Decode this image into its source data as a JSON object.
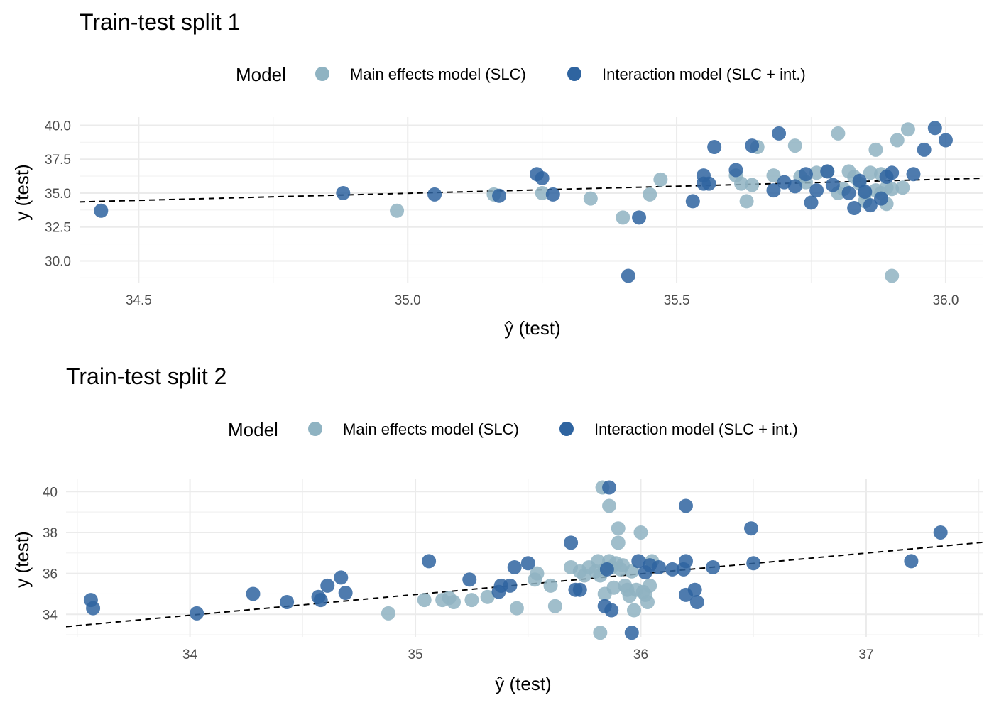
{
  "colors": {
    "main": "#8fb3c2",
    "interaction": "#2f64a0"
  },
  "legend": {
    "title": "Model",
    "main_label": "Main effects model (SLC)",
    "interaction_label": "Interaction model (SLC + int.)"
  },
  "chart_data": [
    {
      "type": "scatter",
      "title": "Train-test split 1",
      "xlabel": "ŷ (test)",
      "ylabel": "y (test)",
      "xlim": [
        34.39,
        36.07
      ],
      "ylim": [
        28.4,
        40.6
      ],
      "xticks": [
        34.5,
        35.0,
        35.5,
        36.0
      ],
      "xtick_labels": [
        "34.5",
        "35.0",
        "35.5",
        "36.0"
      ],
      "yticks": [
        30.0,
        32.5,
        35.0,
        37.5,
        40.0
      ],
      "ytick_labels": [
        "30.0",
        "32.5",
        "35.0",
        "37.5",
        "40.0"
      ],
      "grid": true,
      "legend_position": "top",
      "reference_line": {
        "x": [
          34.39,
          36.07
        ],
        "y": [
          34.35,
          36.1
        ]
      },
      "series": [
        {
          "name": "Main effects model (SLC)",
          "color_key": "main",
          "points": [
            [
              34.98,
              33.7
            ],
            [
              35.16,
              34.9
            ],
            [
              35.25,
              35.0
            ],
            [
              35.34,
              34.6
            ],
            [
              35.4,
              33.2
            ],
            [
              35.45,
              34.9
            ],
            [
              35.47,
              36.0
            ],
            [
              35.61,
              36.3
            ],
            [
              35.62,
              35.7
            ],
            [
              35.63,
              34.4
            ],
            [
              35.64,
              35.6
            ],
            [
              35.65,
              38.4
            ],
            [
              35.68,
              36.3
            ],
            [
              35.72,
              38.5
            ],
            [
              35.73,
              36.2
            ],
            [
              35.74,
              35.8
            ],
            [
              35.76,
              36.5
            ],
            [
              35.78,
              36.6
            ],
            [
              35.8,
              39.4
            ],
            [
              35.8,
              35.0
            ],
            [
              35.81,
              35.3
            ],
            [
              35.82,
              36.6
            ],
            [
              35.83,
              36.2
            ],
            [
              35.84,
              35.7
            ],
            [
              35.85,
              34.4
            ],
            [
              35.85,
              35.0
            ],
            [
              35.86,
              36.5
            ],
            [
              35.87,
              38.2
            ],
            [
              35.87,
              35.2
            ],
            [
              35.88,
              36.4
            ],
            [
              35.88,
              35.0
            ],
            [
              35.89,
              34.2
            ],
            [
              35.89,
              35.4
            ],
            [
              35.9,
              28.9
            ],
            [
              35.9,
              35.3
            ],
            [
              35.91,
              38.9
            ],
            [
              35.92,
              35.4
            ],
            [
              35.93,
              39.7
            ]
          ]
        },
        {
          "name": "Interaction model (SLC + int.)",
          "color_key": "interaction",
          "points": [
            [
              34.43,
              33.7
            ],
            [
              34.88,
              35.0
            ],
            [
              35.05,
              34.9
            ],
            [
              35.17,
              34.8
            ],
            [
              35.24,
              36.4
            ],
            [
              35.25,
              36.1
            ],
            [
              35.27,
              34.9
            ],
            [
              35.41,
              28.9
            ],
            [
              35.43,
              33.2
            ],
            [
              35.53,
              34.4
            ],
            [
              35.55,
              35.7
            ],
            [
              35.55,
              36.3
            ],
            [
              35.56,
              35.7
            ],
            [
              35.57,
              38.4
            ],
            [
              35.61,
              36.7
            ],
            [
              35.64,
              38.5
            ],
            [
              35.68,
              35.2
            ],
            [
              35.69,
              39.4
            ],
            [
              35.7,
              35.8
            ],
            [
              35.72,
              35.5
            ],
            [
              35.74,
              36.4
            ],
            [
              35.75,
              34.3
            ],
            [
              35.76,
              35.2
            ],
            [
              35.78,
              36.6
            ],
            [
              35.79,
              35.6
            ],
            [
              35.82,
              35.0
            ],
            [
              35.83,
              33.9
            ],
            [
              35.84,
              35.9
            ],
            [
              35.85,
              35.1
            ],
            [
              35.86,
              34.1
            ],
            [
              35.88,
              34.6
            ],
            [
              35.89,
              36.2
            ],
            [
              35.9,
              36.5
            ],
            [
              35.94,
              36.4
            ],
            [
              35.96,
              38.2
            ],
            [
              35.98,
              39.8
            ],
            [
              36.0,
              38.9
            ]
          ]
        }
      ]
    },
    {
      "type": "scatter",
      "title": "Train-test split 2",
      "xlabel": "ŷ (test)",
      "ylabel": "y (test)",
      "xlim": [
        33.45,
        37.52
      ],
      "ylim": [
        32.9,
        40.6
      ],
      "xticks": [
        34,
        35,
        36,
        37
      ],
      "xtick_labels": [
        "34",
        "35",
        "36",
        "37"
      ],
      "yticks": [
        34,
        36,
        38,
        40
      ],
      "ytick_labels": [
        "34",
        "36",
        "38",
        "40"
      ],
      "grid": true,
      "legend_position": "top",
      "reference_line": {
        "x": [
          33.45,
          37.52
        ],
        "y": [
          33.4,
          37.52
        ]
      },
      "series": [
        {
          "name": "Main effects model (SLC)",
          "color_key": "main",
          "points": [
            [
              34.88,
              34.05
            ],
            [
              35.04,
              34.7
            ],
            [
              35.12,
              34.7
            ],
            [
              35.15,
              34.8
            ],
            [
              35.17,
              34.6
            ],
            [
              35.25,
              34.7
            ],
            [
              35.32,
              34.85
            ],
            [
              35.45,
              34.3
            ],
            [
              35.53,
              35.7
            ],
            [
              35.54,
              36.0
            ],
            [
              35.6,
              35.4
            ],
            [
              35.62,
              34.4
            ],
            [
              35.69,
              36.3
            ],
            [
              35.73,
              36.1
            ],
            [
              35.75,
              35.9
            ],
            [
              35.77,
              36.3
            ],
            [
              35.8,
              36.1
            ],
            [
              35.81,
              36.6
            ],
            [
              35.82,
              35.9
            ],
            [
              35.83,
              40.2
            ],
            [
              35.84,
              35.0
            ],
            [
              35.84,
              36.2
            ],
            [
              35.86,
              36.6
            ],
            [
              35.86,
              39.3
            ],
            [
              35.87,
              36.3
            ],
            [
              35.88,
              35.3
            ],
            [
              35.89,
              36.5
            ],
            [
              35.9,
              38.2
            ],
            [
              35.9,
              37.5
            ],
            [
              35.91,
              36.2
            ],
            [
              35.92,
              36.4
            ],
            [
              35.93,
              35.4
            ],
            [
              35.94,
              35.2
            ],
            [
              35.95,
              34.9
            ],
            [
              35.96,
              36.1
            ],
            [
              35.97,
              34.2
            ],
            [
              35.98,
              35.2
            ],
            [
              36.0,
              38.0
            ],
            [
              36.01,
              35.1
            ],
            [
              36.02,
              34.95
            ],
            [
              36.03,
              34.6
            ],
            [
              36.04,
              35.4
            ],
            [
              36.05,
              36.6
            ],
            [
              35.82,
              33.1
            ]
          ]
        },
        {
          "name": "Interaction model (SLC + int.)",
          "color_key": "interaction",
          "points": [
            [
              33.56,
              34.7
            ],
            [
              33.57,
              34.3
            ],
            [
              34.03,
              34.05
            ],
            [
              34.28,
              35.0
            ],
            [
              34.43,
              34.6
            ],
            [
              34.57,
              34.85
            ],
            [
              34.58,
              34.7
            ],
            [
              34.61,
              35.4
            ],
            [
              34.67,
              35.8
            ],
            [
              34.69,
              35.05
            ],
            [
              35.06,
              36.6
            ],
            [
              35.24,
              35.7
            ],
            [
              35.37,
              35.1
            ],
            [
              35.38,
              35.4
            ],
            [
              35.42,
              35.4
            ],
            [
              35.44,
              36.3
            ],
            [
              35.5,
              36.5
            ],
            [
              35.69,
              37.5
            ],
            [
              35.71,
              35.2
            ],
            [
              35.73,
              35.2
            ],
            [
              35.84,
              34.4
            ],
            [
              35.85,
              36.2
            ],
            [
              35.86,
              40.2
            ],
            [
              35.87,
              34.2
            ],
            [
              35.96,
              33.1
            ],
            [
              35.99,
              36.6
            ],
            [
              36.02,
              36.05
            ],
            [
              36.04,
              36.4
            ],
            [
              36.08,
              36.3
            ],
            [
              36.14,
              36.2
            ],
            [
              36.19,
              36.2
            ],
            [
              36.2,
              39.3
            ],
            [
              36.2,
              36.6
            ],
            [
              36.2,
              34.95
            ],
            [
              36.24,
              35.2
            ],
            [
              36.25,
              34.6
            ],
            [
              36.32,
              36.3
            ],
            [
              36.49,
              38.2
            ],
            [
              36.5,
              36.5
            ],
            [
              37.2,
              36.6
            ],
            [
              37.33,
              38.0
            ]
          ]
        }
      ]
    }
  ]
}
